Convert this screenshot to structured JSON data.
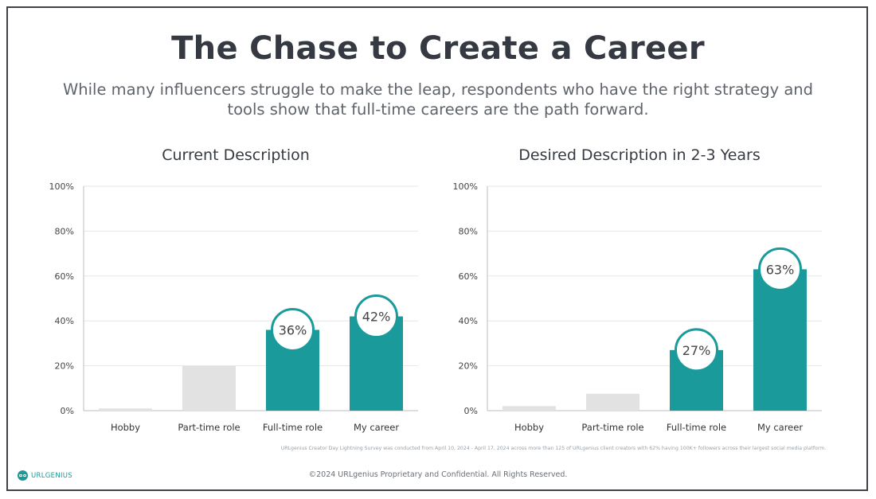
{
  "page": {
    "title": "The Chase to Create a Career",
    "subtitle": "While many influencers struggle to make the leap, respondents who have the right strategy and tools show that full-time careers are the path forward.",
    "footnote": "URLgenius Creator Day Lightning Survey was conducted from April 10, 2024 - April 17, 2024 across more than 125 of URLgenius client creators with 62% having 100K+ followers across their largest social media platform.",
    "copyright": "©2024 URLgenius Proprietary and Confidential. All Rights Reserved.",
    "logo_text": "URLGENIUS"
  },
  "colors": {
    "highlight": "#1a9a9a",
    "muted": "#e2e2e2",
    "grid": "#e6e6e6",
    "axis": "#bdbdbd"
  },
  "chart_data": [
    {
      "type": "bar",
      "title": "Current Description",
      "categories": [
        "Hobby",
        "Part-time role",
        "Full-time role",
        "My career"
      ],
      "values": [
        1,
        20,
        36,
        42
      ],
      "highlighted": [
        false,
        false,
        true,
        true
      ],
      "data_labels": [
        "",
        "",
        "36%",
        "42%"
      ],
      "ylim": [
        0,
        100
      ],
      "yticks": [
        "0%",
        "20%",
        "40%",
        "60%",
        "80%",
        "100%"
      ],
      "grid": true
    },
    {
      "type": "bar",
      "title": "Desired Description in 2-3 Years",
      "categories": [
        "Hobby",
        "Part-time role",
        "Full-time role",
        "My career"
      ],
      "values": [
        2,
        7.5,
        27,
        63
      ],
      "highlighted": [
        false,
        false,
        true,
        true
      ],
      "data_labels": [
        "",
        "",
        "27%",
        "63%"
      ],
      "ylim": [
        0,
        100
      ],
      "yticks": [
        "0%",
        "20%",
        "40%",
        "60%",
        "80%",
        "100%"
      ],
      "grid": true
    }
  ]
}
